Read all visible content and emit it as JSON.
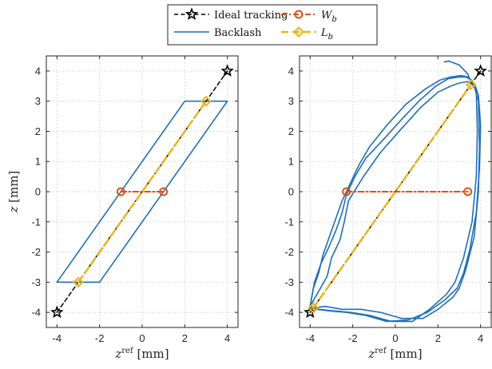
{
  "chart_data": [
    {
      "type": "line",
      "panel": "left",
      "xlabel": {
        "var": "z",
        "sup": "ref",
        "unit": "[mm]"
      },
      "ylabel": {
        "var": "z",
        "unit": "[mm]"
      },
      "xlim": [
        -4.5,
        4.5
      ],
      "ylim": [
        -4.5,
        4.5
      ],
      "xticks": [
        -4,
        -2,
        0,
        2,
        4
      ],
      "yticks": [
        -4,
        -3,
        -2,
        -1,
        0,
        1,
        2,
        3,
        4
      ],
      "grid": true,
      "series": [
        {
          "name": "Ideal tracking",
          "style": "dash-star",
          "color": "#000000",
          "x": [
            -4,
            4
          ],
          "y": [
            -4,
            4
          ],
          "markers": [
            [
              -4,
              -4
            ],
            [
              4,
              4
            ]
          ]
        },
        {
          "name": "Backlash",
          "style": "solid",
          "color": "#1f6fb5",
          "x": [
            -4,
            -2,
            4,
            2,
            -4
          ],
          "y": [
            -3,
            -3,
            3,
            3,
            -3
          ]
        },
        {
          "name": "W_b",
          "style": "dashdot-circle",
          "color": "#d95319",
          "x": [
            -1,
            1
          ],
          "y": [
            0,
            0
          ],
          "markers": [
            [
              -1,
              0
            ],
            [
              1,
              0
            ]
          ]
        },
        {
          "name": "L_b",
          "style": "dash-diamond",
          "color": "#edb120",
          "x": [
            -3,
            3
          ],
          "y": [
            -3,
            3
          ],
          "markers": [
            [
              -3,
              -3
            ],
            [
              3,
              3
            ]
          ]
        }
      ]
    },
    {
      "type": "line",
      "panel": "right",
      "xlabel": {
        "var": "z",
        "sup": "ref",
        "unit": "[mm]"
      },
      "ylabel": {
        "var": "",
        "unit": ""
      },
      "xlim": [
        -4.5,
        4.5
      ],
      "ylim": [
        -4.5,
        4.5
      ],
      "xticks": [
        -4,
        -2,
        0,
        2,
        4
      ],
      "yticks": [
        -4,
        -3,
        -2,
        -1,
        0,
        1,
        2,
        3,
        4
      ],
      "grid": true,
      "series": [
        {
          "name": "Ideal tracking",
          "style": "dash-star",
          "color": "#000000",
          "x": [
            -4,
            4
          ],
          "y": [
            -4,
            4
          ],
          "markers": [
            [
              -4,
              -4
            ],
            [
              4,
              4
            ]
          ]
        },
        {
          "name": "Backlash",
          "style": "solid",
          "color": "#1f6fb5",
          "loops": [
            {
              "x": [
                -4.0,
                -3.6,
                -3.2,
                -3.0,
                -2.6,
                -2.4,
                -2.2,
                -1.5,
                -0.7,
                0.3,
                1.2,
                2.0,
                2.6,
                3.0,
                3.4,
                3.7,
                3.9,
                3.95,
                3.9,
                3.7,
                3.3,
                3.0,
                2.7,
                2.0,
                1.3,
                0.3,
                -0.7,
                -1.6,
                -2.5,
                -3.3,
                -3.8,
                -4.0
              ],
              "y": [
                -3.8,
                -3.3,
                -2.8,
                -2.2,
                -1.6,
                -1.0,
                -0.3,
                0.5,
                1.3,
                2.1,
                2.8,
                3.3,
                3.5,
                3.6,
                3.65,
                3.5,
                3.0,
                1.5,
                0.0,
                -1.5,
                -2.6,
                -3.2,
                -3.5,
                -3.9,
                -4.2,
                -4.2,
                -4.0,
                -3.9,
                -3.9,
                -3.8,
                -3.85,
                -3.8
              ]
            },
            {
              "x": [
                -4.0,
                -3.8,
                -3.5,
                -3.1,
                -2.8,
                -2.5,
                -2.3,
                -1.9,
                -1.4,
                -0.6,
                0.3,
                1.1,
                1.9,
                2.5,
                3.0,
                3.3,
                3.6,
                3.8,
                3.85,
                3.8,
                3.6,
                3.2,
                2.8,
                2.4,
                1.6,
                0.8,
                -0.2,
                -1.2,
                -2.1,
                -2.9,
                -3.6,
                -4.0
              ],
              "y": [
                -3.8,
                -3.0,
                -2.4,
                -1.8,
                -1.3,
                -0.7,
                -0.1,
                0.5,
                1.1,
                1.7,
                2.4,
                3.0,
                3.5,
                3.75,
                3.8,
                3.8,
                3.7,
                3.3,
                2.0,
                0.5,
                -1.0,
                -2.2,
                -3.0,
                -3.4,
                -3.9,
                -4.3,
                -4.3,
                -4.1,
                -4.0,
                -3.95,
                -3.9,
                -3.8
              ]
            },
            {
              "x": [
                -4.0,
                -3.85,
                -3.6,
                -3.4,
                -3.1,
                -2.8,
                -2.5,
                -2.1,
                -1.7,
                -1.2,
                -0.4,
                0.5,
                1.4,
                2.1,
                2.6,
                3.1,
                3.4,
                3.7,
                3.9,
                4.0,
                3.95,
                3.8,
                3.5,
                3.2,
                2.9,
                2.3,
                1.5,
                0.6,
                -0.4,
                -1.4,
                -2.3,
                -3.1,
                -3.7,
                -4.0
              ],
              "y": [
                -3.8,
                -3.2,
                -2.7,
                -2.1,
                -1.5,
                -0.9,
                -0.3,
                0.3,
                0.9,
                1.5,
                2.2,
                2.9,
                3.4,
                3.7,
                3.8,
                3.85,
                3.8,
                3.6,
                3.2,
                2.2,
                0.8,
                -0.7,
                -1.9,
                -2.7,
                -3.2,
                -3.6,
                -4.0,
                -4.25,
                -4.3,
                -4.1,
                -4.0,
                -3.95,
                -3.9,
                -3.8
              ]
            },
            {
              "x": [
                2.3,
                2.5,
                3.0,
                3.4,
                3.6
              ],
              "y": [
                4.3,
                4.33,
                4.2,
                3.9,
                3.55
              ]
            }
          ]
        },
        {
          "name": "W_b",
          "style": "dashdot-circle",
          "color": "#d95319",
          "x": [
            -2.3,
            3.4
          ],
          "y": [
            0,
            0
          ],
          "markers": [
            [
              -2.3,
              0
            ],
            [
              3.4,
              0
            ]
          ]
        },
        {
          "name": "L_b",
          "style": "dash-diamond",
          "color": "#edb120",
          "x": [
            -3.85,
            3.55
          ],
          "y": [
            -3.85,
            3.55
          ],
          "markers": [
            [
              -3.85,
              -3.85
            ],
            [
              3.55,
              3.55
            ]
          ]
        }
      ]
    }
  ],
  "legend": {
    "entries": [
      {
        "key": "ideal",
        "label": "Ideal tracking",
        "style": "dash-star",
        "color": "#000000"
      },
      {
        "key": "wb",
        "label_main": "W",
        "label_sub": "b",
        "style": "dashdot-circle",
        "color": "#d95319"
      },
      {
        "key": "backlash",
        "label": "Backlash",
        "style": "solid",
        "color": "#1f6fb5"
      },
      {
        "key": "lb",
        "label_main": "L",
        "label_sub": "b",
        "style": "dash-diamond",
        "color": "#edb120"
      }
    ]
  }
}
